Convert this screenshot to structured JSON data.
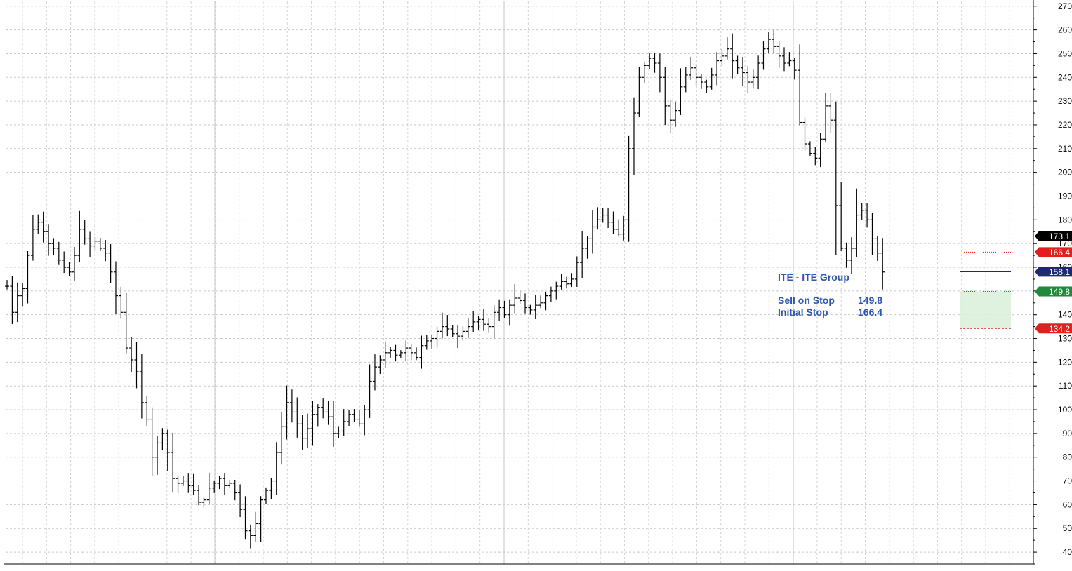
{
  "chart_data": {
    "type": "ohlc",
    "symbol_title": "ITE - ITE Group",
    "annotations": [
      {
        "label": "Sell on Stop",
        "value": "149.8"
      },
      {
        "label": "Initial Stop",
        "value": "166.4"
      }
    ],
    "y_axis": {
      "range": [
        35,
        272
      ],
      "ticks": [
        40,
        50,
        60,
        70,
        80,
        90,
        100,
        110,
        120,
        130,
        140,
        150,
        160,
        170,
        180,
        190,
        200,
        210,
        220,
        230,
        240,
        250,
        260,
        270
      ],
      "position": "right"
    },
    "grid": true,
    "price_tags": [
      {
        "label": "173.1",
        "value": 173.1,
        "color": "#000000"
      },
      {
        "label": "166.4",
        "value": 166.4,
        "color": "#e0201e"
      },
      {
        "label": "158.1",
        "value": 158.1,
        "color": "#1f2a6e"
      },
      {
        "label": "149.8",
        "value": 149.8,
        "color": "#1e8a3a"
      },
      {
        "label": "134.2",
        "value": 134.2,
        "color": "#e0201e"
      }
    ],
    "levels": {
      "current_close": 158.1,
      "initial_stop": 166.4,
      "entry": 149.8,
      "target": 134.2
    },
    "series_close": [
      152,
      141,
      148,
      151,
      165,
      176,
      179,
      175,
      170,
      168,
      163,
      160,
      158,
      165,
      176,
      172,
      169,
      171,
      168,
      166,
      158,
      148,
      141,
      126,
      121,
      116,
      103,
      96,
      80,
      86,
      90,
      82,
      71,
      69,
      70,
      68,
      66,
      61,
      62,
      67,
      69,
      71,
      68,
      69,
      65,
      58,
      49,
      47,
      52,
      62,
      66,
      70,
      82,
      93,
      103,
      99,
      94,
      88,
      92,
      98,
      101,
      99,
      97,
      90,
      91,
      95,
      98,
      96,
      94,
      100,
      112,
      118,
      121,
      124,
      125,
      123,
      124,
      126,
      124,
      122,
      127,
      129,
      130,
      133,
      135,
      134,
      132,
      131,
      133,
      135,
      137,
      138,
      136,
      135,
      141,
      143,
      140,
      144,
      147,
      146,
      143,
      142,
      144,
      145,
      148,
      150,
      152,
      154,
      153,
      155,
      162,
      168,
      172,
      177,
      180,
      182,
      179,
      176,
      174,
      180,
      210,
      225,
      240,
      245,
      248,
      246,
      240,
      228,
      222,
      226,
      236,
      241,
      244,
      240,
      238,
      236,
      241,
      247,
      249,
      252,
      247,
      244,
      242,
      238,
      240,
      246,
      252,
      256,
      253,
      249,
      246,
      247,
      243,
      221,
      212,
      208,
      206,
      214,
      228,
      222,
      186,
      168,
      163,
      168,
      182,
      184,
      180,
      172,
      166,
      158
    ]
  }
}
